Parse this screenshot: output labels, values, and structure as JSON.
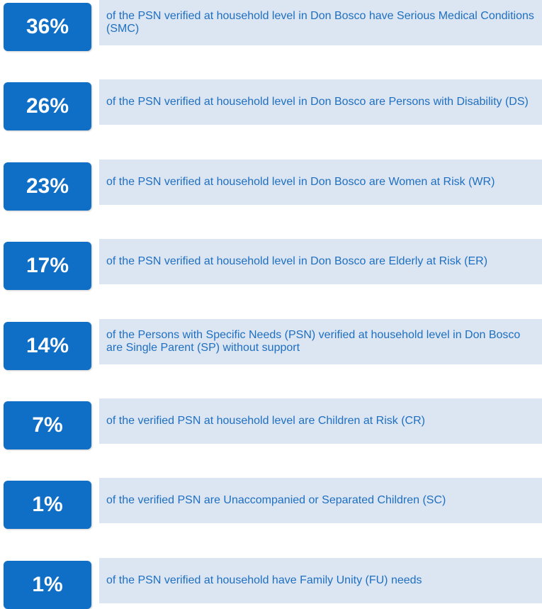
{
  "items": [
    {
      "stat": "36%",
      "text": "of the PSN verified at household level in Don Bosco have Serious Medical Conditions (SMC)"
    },
    {
      "stat": "26%",
      "text": "of the PSN verified at household level in Don Bosco are Persons with Disability (DS)"
    },
    {
      "stat": "23%",
      "text": "of the PSN verified at household level in Don Bosco are Women at Risk (WR)"
    },
    {
      "stat": "17%",
      "text": "of the PSN verified at household level in Don Bosco are Elderly at Risk (ER)"
    },
    {
      "stat": "14%",
      "text": "of the Persons with Specific Needs (PSN) verified at household level in Don Bosco are Single Parent (SP) without support"
    },
    {
      "stat": "7%",
      "text": "of the verified PSN at household level are Children at Risk (CR)"
    },
    {
      "stat": "1%",
      "text": "of the verified PSN are Unaccompanied or Separated Children (SC)"
    },
    {
      "stat": "1%",
      "text": "of the PSN verified at household have Family Unity (FU) needs"
    }
  ]
}
